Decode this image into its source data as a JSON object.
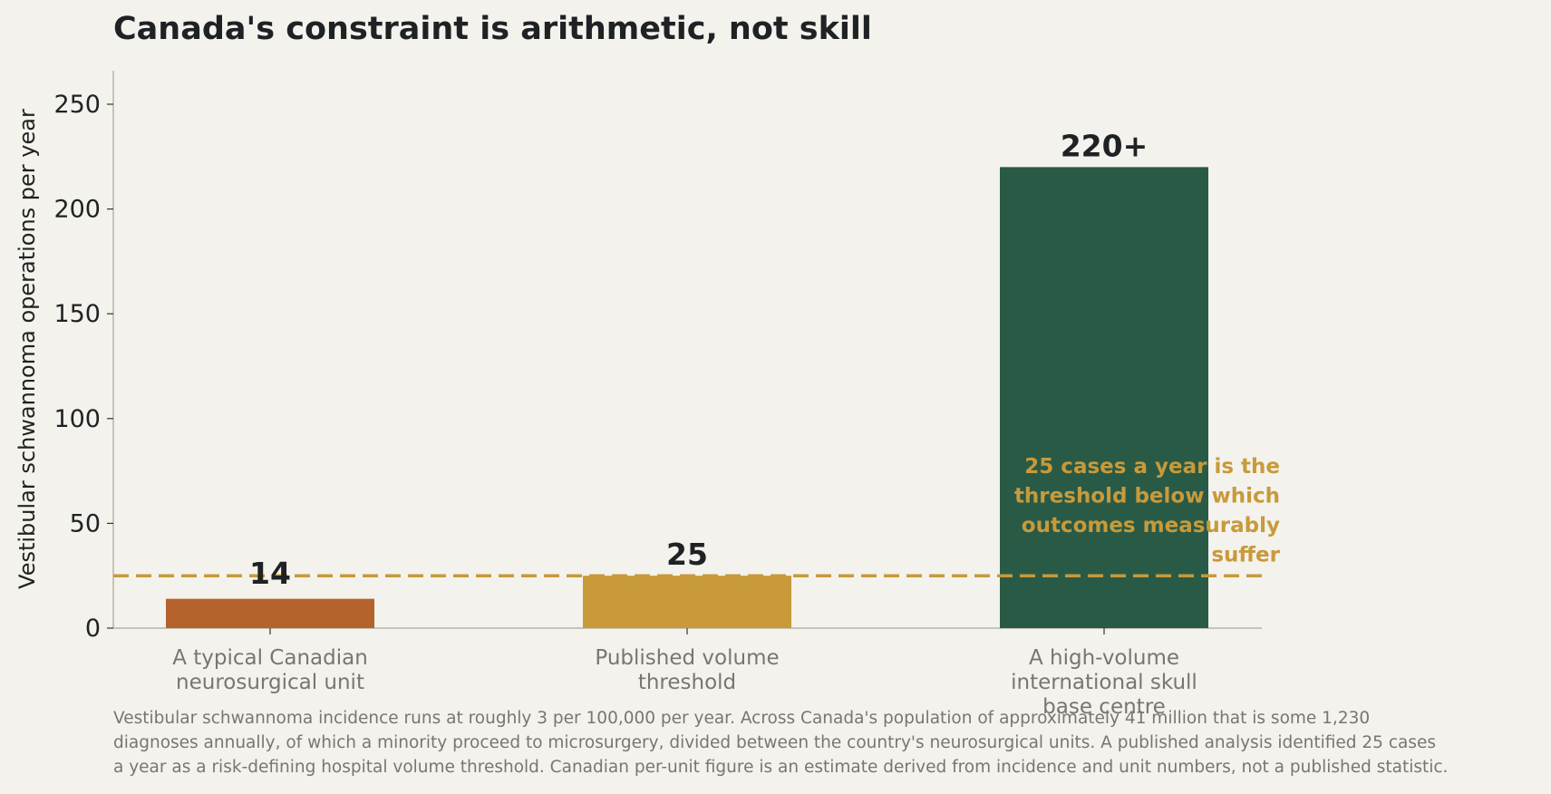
{
  "title": "Canada's constraint is arithmetic, not skill",
  "colors": {
    "background": "#f4f2ec",
    "typical_unit": "#b5622d",
    "threshold": "#c89a3a",
    "high_volume": "#295a46",
    "axis": "#b7b4a8",
    "text_dark": "#1f2224",
    "text_muted": "#77766f"
  },
  "chart_data": {
    "type": "bar",
    "categories": [
      [
        "A typical Canadian",
        "neurosurgical unit"
      ],
      [
        "Published volume",
        "threshold"
      ],
      [
        "A high-volume",
        "international skull",
        "base centre"
      ]
    ],
    "values": [
      14,
      25,
      220
    ],
    "value_labels": [
      "14",
      "25",
      "220+"
    ],
    "bar_colors": [
      "#b5622d",
      "#c89a3a",
      "#295a46"
    ],
    "ylabel": "Vestibular schwannoma operations per year",
    "ylim": [
      0,
      265
    ],
    "yticks": [
      0,
      50,
      100,
      150,
      200,
      250
    ],
    "grid": false,
    "reference_line": {
      "value": 25,
      "style": "dashed",
      "color": "#c89a3a",
      "annotation": [
        "25 cases a year is the",
        "threshold below which",
        "outcomes measurably",
        "suffer"
      ]
    }
  },
  "footnote": [
    "Vestibular schwannoma incidence runs at roughly 3 per 100,000 per year. Across Canada's population of approximately 41 million that is some 1,230",
    "diagnoses annually, of which a minority proceed to microsurgery, divided between the country's neurosurgical units. A published analysis identified 25 cases",
    "a year as a risk-defining hospital volume threshold. Canadian per-unit figure is an estimate derived from incidence and unit numbers, not a published statistic."
  ]
}
